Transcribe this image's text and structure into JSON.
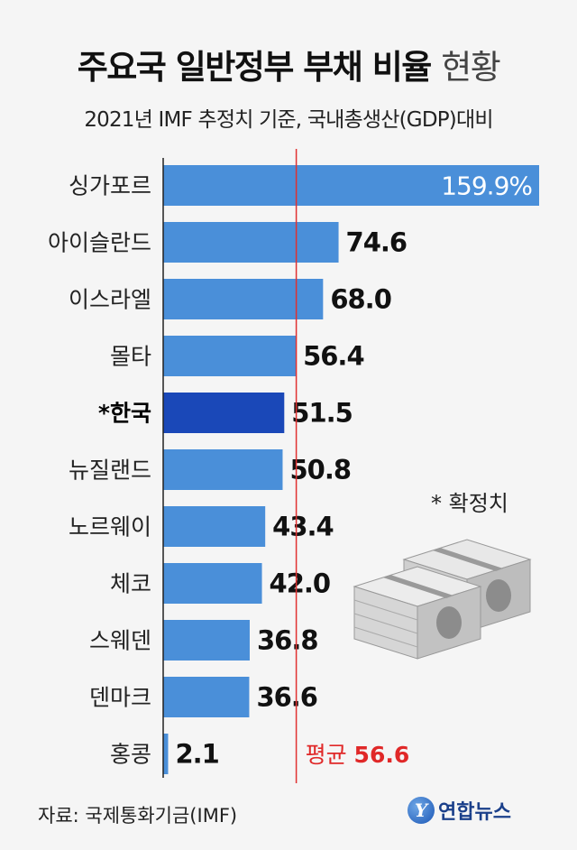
{
  "header": {
    "title_main": "주요국 일반정부 부채 비율",
    "title_suffix": "현황",
    "subtitle": "2021년 IMF 추정치 기준, 국내총생산(GDP)대비"
  },
  "chart_data": {
    "type": "bar",
    "orientation": "horizontal",
    "categories": [
      "싱가포르",
      "아이슬란드",
      "이스라엘",
      "몰타",
      "*한국",
      "뉴질랜드",
      "노르웨이",
      "체코",
      "스웨덴",
      "덴마크",
      "홍콩"
    ],
    "values": [
      159.9,
      74.6,
      68.0,
      56.4,
      51.5,
      50.8,
      43.4,
      42.0,
      36.8,
      36.6,
      2.1
    ],
    "value_labels": [
      "159.9%",
      "74.6",
      "68.0",
      "56.4",
      "51.5",
      "50.8",
      "43.4",
      "42.0",
      "36.8",
      "36.6",
      "2.1"
    ],
    "highlight_category": "*한국",
    "reference_line": {
      "value": 56.6,
      "label": "평균",
      "value_label": "56.6"
    },
    "unit": "%",
    "colors": {
      "bar": "#4a8fd9",
      "highlight": "#1a48b8",
      "reference": "#e03030"
    }
  },
  "note": "* 확정치",
  "source": "자료: 국제통화기금(IMF)",
  "logo": {
    "mark": "Y",
    "text": "연합뉴스"
  }
}
